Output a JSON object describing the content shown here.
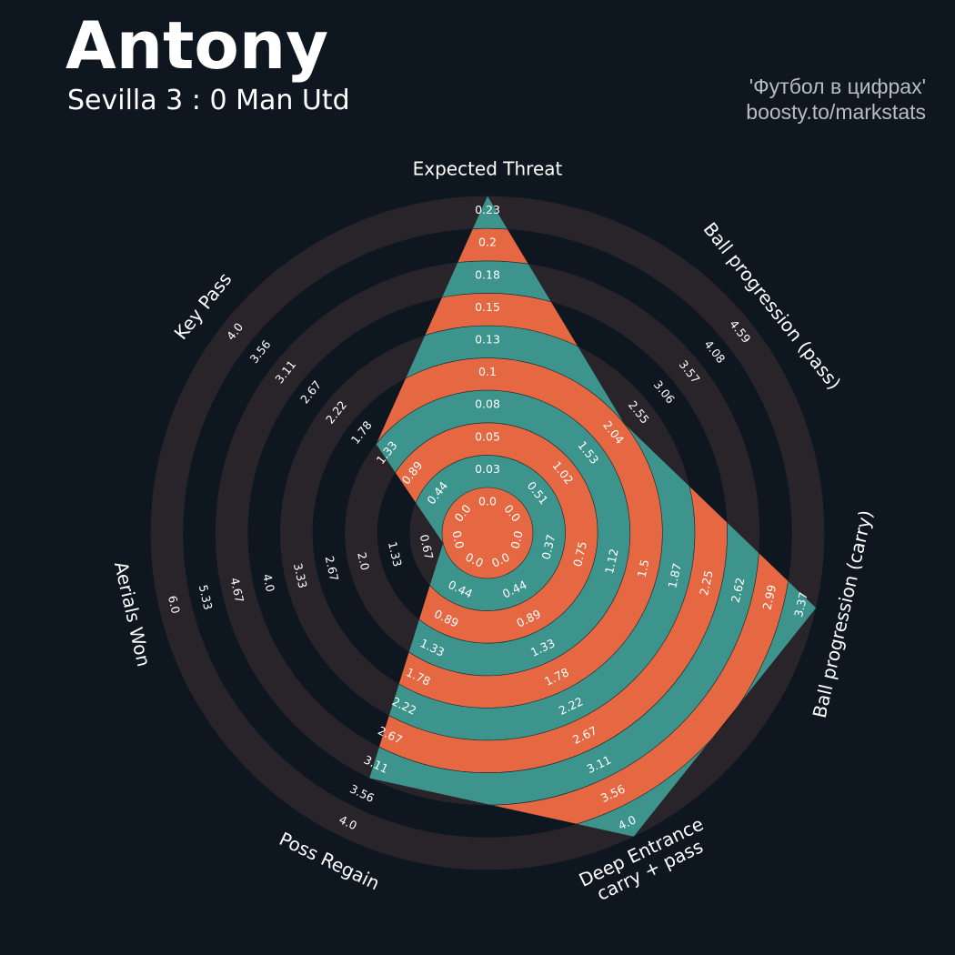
{
  "header": {
    "title": "Antony",
    "subtitle": "Sevilla 3 : 0 Man Utd",
    "credit_line1": "'Футбол в цифрах'",
    "credit_line2": "boosty.to/markstats"
  },
  "colors": {
    "background": "#0e1720",
    "ring_band": "#29242a",
    "fill_primary": "#3d948c",
    "fill_secondary": "#e56842",
    "text": "#ffffff"
  },
  "chart_data": {
    "type": "radar",
    "title": "Antony",
    "subtitle": "Sevilla 3 : 0 Man Utd",
    "axes": [
      {
        "label": "Expected Threat",
        "value": 0.23,
        "max": 0.23,
        "ticks": [
          "0.0",
          "0.03",
          "0.05",
          "0.08",
          "0.1",
          "0.13",
          "0.15",
          "0.18",
          "0.2",
          "0.23"
        ]
      },
      {
        "label": "Ball progression (pass)",
        "value": 2.04,
        "max": 4.59,
        "ticks": [
          "0.0",
          "0.51",
          "1.02",
          "1.53",
          "2.04",
          "2.55",
          "3.06",
          "3.57",
          "4.08",
          "4.59"
        ]
      },
      {
        "label": "Ball progression (carry)",
        "value": 3.37,
        "max": 3.37,
        "ticks": [
          "0.0",
          "0.37",
          "0.75",
          "1.12",
          "1.5",
          "1.87",
          "2.25",
          "2.62",
          "2.99",
          "3.37"
        ]
      },
      {
        "label": "Deep Entrance\ncarry + pass",
        "value": 4.0,
        "max": 4.0,
        "ticks": [
          "0.0",
          "0.44",
          "0.89",
          "1.33",
          "1.78",
          "2.22",
          "2.67",
          "3.11",
          "3.56",
          "4.0"
        ]
      },
      {
        "label": "Poss Regain",
        "value": 3.11,
        "max": 4.0,
        "ticks": [
          "0.0",
          "0.44",
          "0.89",
          "1.33",
          "1.78",
          "2.22",
          "2.67",
          "3.11",
          "3.56",
          "4.0"
        ]
      },
      {
        "label": "Aerials Won",
        "value": 0.0,
        "max": 6.0,
        "ticks": [
          "0.0",
          "0.67",
          "1.33",
          "2.0",
          "2.67",
          "3.33",
          "4.0",
          "4.67",
          "5.33",
          "6.0"
        ]
      },
      {
        "label": "Key Pass",
        "value": 1.33,
        "max": 4.0,
        "ticks": [
          "0.0",
          "0.44",
          "0.89",
          "1.33",
          "1.78",
          "2.22",
          "2.67",
          "3.11",
          "3.56",
          "4.0"
        ]
      }
    ]
  }
}
